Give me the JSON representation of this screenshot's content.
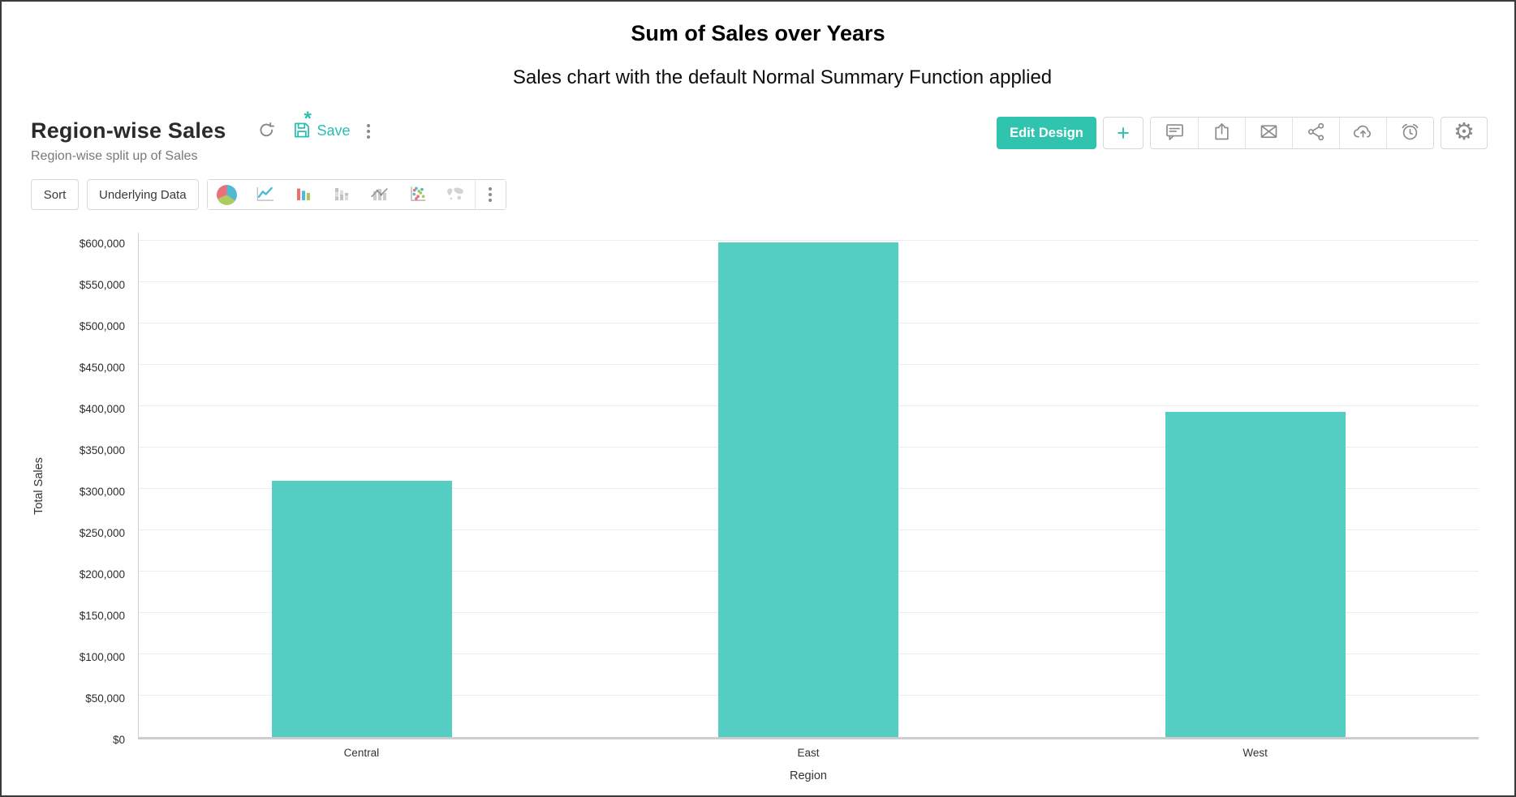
{
  "page": {
    "title": "Sum of Sales over Years",
    "subtitle": "Sales chart with the default Normal Summary Function applied"
  },
  "report": {
    "title": "Region-wise Sales",
    "subtitle": "Region-wise split up of Sales",
    "save_label": "Save",
    "save_star": "*"
  },
  "actions": {
    "edit_design_label": "Edit Design",
    "plus_label": "+",
    "gear_glyph": "⚙",
    "icon_names": [
      "comment-icon",
      "export-icon",
      "email-icon",
      "share-icon",
      "cloud-upload-icon",
      "alarm-clock-icon",
      "gear-icon"
    ]
  },
  "toolbar": {
    "sort_label": "Sort",
    "underlying_data_label": "Underlying Data",
    "chart_type_icons": [
      "pie-chart-icon",
      "line-chart-icon",
      "bar-chart-icon",
      "stacked-bar-chart-icon",
      "combo-chart-icon",
      "scatter-plot-icon",
      "map-chart-icon",
      "more-chart-types-kebab"
    ]
  },
  "chart_data": {
    "type": "bar",
    "categories": [
      "Central",
      "East",
      "West"
    ],
    "values": [
      310000,
      598000,
      393000
    ],
    "title": "",
    "xlabel": "Region",
    "ylabel": "Total Sales",
    "ylim": [
      0,
      600000
    ],
    "ytick_step": 50000,
    "ytick_values": [
      0,
      50000,
      100000,
      150000,
      200000,
      250000,
      300000,
      350000,
      400000,
      450000,
      500000,
      550000,
      600000
    ],
    "ytick_labels": [
      "$0",
      "$50,000",
      "$100,000",
      "$150,000",
      "$200,000",
      "$250,000",
      "$300,000",
      "$350,000",
      "$400,000",
      "$450,000",
      "$500,000",
      "$550,000",
      "$600,000"
    ],
    "grid": true,
    "legend": false,
    "bar_color": "#54cec3"
  },
  "colors": {
    "accent_teal": "#2abfae",
    "edit_design_bg": "#30c3ad",
    "bar_fill": "#54cec3",
    "icon_gray": "#8c8c8c",
    "gridline": "#ececec",
    "axis_line": "#cdcdcd"
  }
}
